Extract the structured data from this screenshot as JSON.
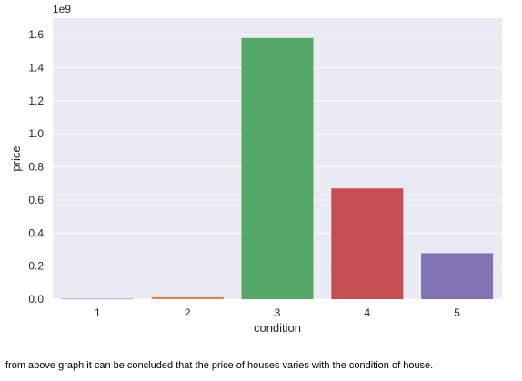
{
  "chart_data": {
    "type": "bar",
    "categories": [
      "1",
      "2",
      "3",
      "4",
      "5"
    ],
    "values": [
      2000000,
      12000000,
      1580000000,
      670000000,
      278000000
    ],
    "colors": [
      "#4c72b0",
      "#dd8452",
      "#55a868",
      "#c44e52",
      "#8172b3"
    ],
    "xlabel": "condition",
    "ylabel": "price",
    "ylim": [
      0,
      1700000000
    ],
    "yticks": [
      0,
      200000000,
      400000000,
      600000000,
      800000000,
      1000000000,
      1200000000,
      1400000000,
      1600000000
    ],
    "ytick_labels": [
      "0.0",
      "0.2",
      "0.4",
      "0.6",
      "0.8",
      "1.0",
      "1.2",
      "1.4",
      "1.6"
    ],
    "offset_label": "1e9",
    "background_color": "#eaeaf2",
    "grid": true
  },
  "caption": "from above graph it can be concluded that the price of houses varies with the condition of house."
}
